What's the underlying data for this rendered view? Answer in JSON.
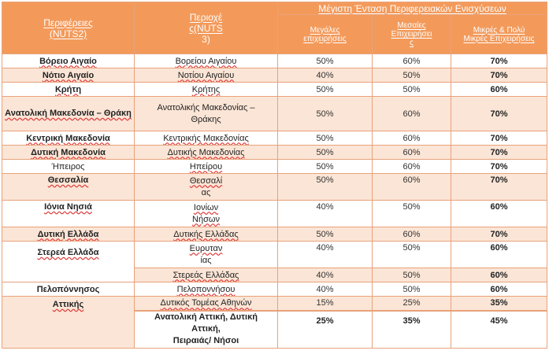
{
  "header": {
    "col1": [
      "Περιφέρειες",
      "(NUTS2)"
    ],
    "col2": [
      "Περιοχέ",
      "ς(NUTS",
      "3)"
    ],
    "group": "Μέγιστη Ένταση Περιφερειακών Ενισχύσεων",
    "large": [
      "Μεγάλες",
      "επιχειρήσεις"
    ],
    "medium": [
      "Μεσαίες",
      "Επιχειρήσει",
      "ς"
    ],
    "small": [
      "Μικρές & Πολύ",
      "Μικρές Επιχειρήσεις"
    ]
  },
  "rows": [
    {
      "region": "Βόρειο Αιγαίο",
      "area": [
        "Βορείου Αιγαίου"
      ],
      "large": "50%",
      "medium": "60%",
      "small": "70%"
    },
    {
      "region": "Νότιο Αιγαίο",
      "area": [
        "Νοτίου Αιγαίου"
      ],
      "large": "40%",
      "medium": "50%",
      "small": "70%"
    },
    {
      "region": "Κρήτη",
      "area": [
        "Κρήτης"
      ],
      "large": "50%",
      "medium": "50%",
      "small": "60%"
    },
    {
      "region": "Ανατολική Μακεδονία – Θράκη",
      "area": [
        "Ανατολικής Μακεδονίας –",
        "Θράκης"
      ],
      "large": "50%",
      "medium": "60%",
      "small": "70%"
    },
    {
      "region": "Κεντρική Μακεδονία",
      "area": [
        "Κεντρικής Μακεδονίας"
      ],
      "large": "50%",
      "medium": "60%",
      "small": "70%"
    },
    {
      "region": "Δυτική Μακεδονία",
      "area": [
        "Δυτικής Μακεδονίας"
      ],
      "large": "50%",
      "medium": "60%",
      "small": "70%"
    },
    {
      "region": "Ήπειρος",
      "area": [
        "Ηπείρου"
      ],
      "large": "50%",
      "medium": "60%",
      "small": "70%"
    },
    {
      "region": "Θεσσαλία",
      "area": [
        "Θεσσαλί",
        "ας"
      ],
      "large": "50%",
      "medium": "60%",
      "small": "70%"
    },
    {
      "region": "Ιόνια Νησιά",
      "area": [
        "Ιονίων",
        "Νήσων"
      ],
      "large": "40%",
      "medium": "50%",
      "small": "60%"
    },
    {
      "region": "Δυτική Ελλάδα",
      "area": [
        "Δυτικής Ελλάδας"
      ],
      "large": "50%",
      "medium": "60%",
      "small": "70%"
    },
    {
      "region": "Στερεά Ελλάδα",
      "area_a": [
        "Ευρυταν",
        "ίας"
      ],
      "large_a": "40%",
      "medium_a": "50%",
      "small_a": "60%",
      "area_b": [
        "Στερεάς Ελλάδας"
      ],
      "large_b": "40%",
      "medium_b": "50%",
      "small_b": "60%"
    },
    {
      "region": "Πελοπόννησος",
      "area": [
        "Πελοποννήσου"
      ],
      "large": "40%",
      "medium": "50%",
      "small": "60%"
    },
    {
      "region": "Αττικής",
      "area_a": [
        "Δυτικός Τομέας Αθηνών"
      ],
      "large_a": "15%",
      "medium_a": "25%",
      "small_a": "35%",
      "area_b": [
        "Ανατολική Αττική, Δυτική",
        "Αττική,",
        "Πειραιάς/ Νήσοι"
      ],
      "large_b": "25%",
      "medium_b": "35%",
      "small_b": "45%"
    }
  ]
}
